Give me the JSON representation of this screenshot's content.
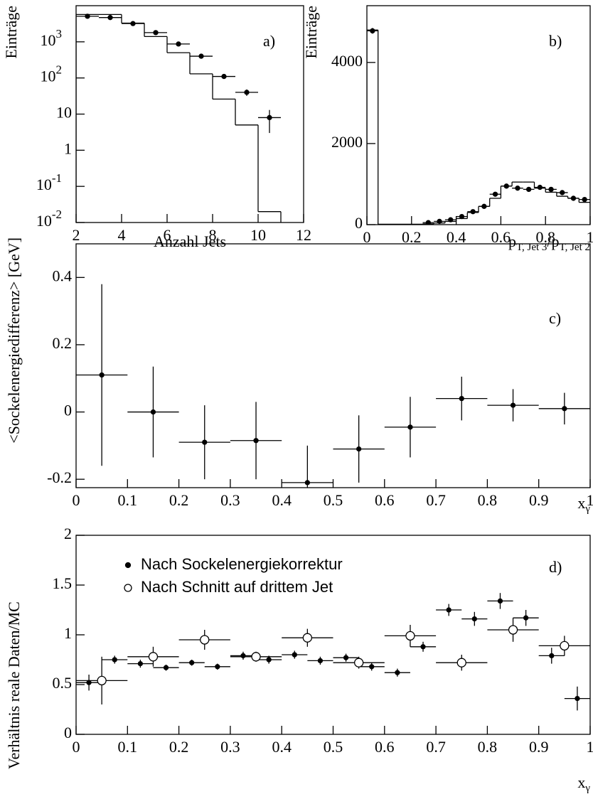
{
  "chart_data": [
    {
      "type": "histogram",
      "panel_label": "a)",
      "ylabel": "Einträge",
      "xlabel": [
        "Anzahl Jets"
      ],
      "log": true,
      "xlim": [
        2,
        12
      ],
      "ylim": [
        0.01,
        10000
      ],
      "xticks": [
        2,
        4,
        6,
        8,
        10,
        12
      ],
      "yticks": [
        {
          "value": 0.01,
          "label": "10",
          "sup": "-2"
        },
        {
          "value": 0.1,
          "label": "10",
          "sup": "-1"
        },
        1,
        10,
        {
          "value": 100,
          "label": "10",
          "sup": "2"
        },
        {
          "value": 1000,
          "label": "10",
          "sup": "3"
        }
      ],
      "bins": [
        2,
        3,
        4,
        5,
        6,
        7,
        8,
        9,
        10,
        11
      ],
      "mc": [
        5700,
        5700,
        3300,
        1400,
        500,
        130,
        26,
        5,
        0.02
      ],
      "series": [
        {
          "marker": "filled",
          "x": [
            2.5,
            3.5,
            4.5,
            5.5,
            6.5,
            7.5,
            8.5,
            9.5,
            10.5
          ],
          "values": [
            5100,
            4700,
            3200,
            1800,
            870,
            400,
            110,
            40,
            8
          ],
          "errors": [
            70,
            70,
            55,
            40,
            28,
            20,
            10,
            8,
            5
          ],
          "xerr": 0.5
        }
      ]
    },
    {
      "type": "histogram",
      "panel_label": "b)",
      "ylabel": "Einträge",
      "xlabel": [
        "p",
        "T, Jet 3",
        "/p",
        "T, Jet 2"
      ],
      "log": false,
      "xlim": [
        0,
        1
      ],
      "ylim": [
        0,
        5400
      ],
      "xticks": [
        0,
        0.2,
        0.4,
        0.6,
        0.8,
        1
      ],
      "yticks": [
        0,
        2000,
        4000
      ],
      "bins": [
        0,
        0.05,
        0.25,
        0.3,
        0.35,
        0.4,
        0.45,
        0.5,
        0.55,
        0.6,
        0.65,
        0.7,
        0.75,
        0.8,
        0.85,
        0.9,
        0.95,
        1
      ],
      "mc": [
        4800,
        10,
        20,
        40,
        80,
        150,
        300,
        450,
        650,
        950,
        1050,
        1050,
        900,
        800,
        700,
        650,
        550
      ],
      "series": [
        {
          "marker": "filled",
          "x": [
            0.025,
            0.275,
            0.325,
            0.375,
            0.425,
            0.475,
            0.525,
            0.575,
            0.625,
            0.675,
            0.725,
            0.775,
            0.825,
            0.875,
            0.925,
            0.975
          ],
          "values": [
            4780,
            50,
            80,
            120,
            200,
            320,
            450,
            750,
            950,
            900,
            870,
            920,
            870,
            790,
            650,
            620
          ],
          "errors": [
            70,
            8,
            10,
            12,
            15,
            20,
            22,
            28,
            32,
            30,
            30,
            31,
            30,
            28,
            26,
            25
          ],
          "xerr": 0.025
        }
      ]
    },
    {
      "type": "scatter",
      "panel_label": "c)",
      "ylabel": "<Sockelenergiedifferenz> [GeV]",
      "xlabel": [
        "x",
        "γ"
      ],
      "log": false,
      "xlim": [
        0,
        1
      ],
      "ylim": [
        -0.225,
        0.5
      ],
      "xticks": [
        0,
        0.1,
        0.2,
        0.3,
        0.4,
        0.5,
        0.6,
        0.7,
        0.8,
        0.9,
        1
      ],
      "yticks": [
        -0.2,
        0,
        0.2,
        0.4
      ],
      "series": [
        {
          "marker": "filled",
          "x": [
            0.05,
            0.15,
            0.25,
            0.35,
            0.45,
            0.55,
            0.65,
            0.75,
            0.85,
            0.95
          ],
          "values": [
            0.11,
            0,
            -0.09,
            -0.085,
            -0.21,
            -0.11,
            -0.045,
            0.04,
            0.02,
            0.01
          ],
          "errors": [
            0.27,
            0.135,
            0.11,
            0.115,
            0.11,
            0.1,
            0.09,
            0.065,
            0.048,
            0.047
          ],
          "xerr": 0.05
        }
      ]
    },
    {
      "type": "scatter",
      "panel_label": "d)",
      "ylabel": "Verhältnis reale Daten/MC",
      "xlabel": [
        "x",
        "γ"
      ],
      "log": false,
      "xlim": [
        0,
        1
      ],
      "ylim": [
        0,
        2
      ],
      "xticks": [
        0,
        0.1,
        0.2,
        0.3,
        0.4,
        0.5,
        0.6,
        0.7,
        0.8,
        0.9,
        1
      ],
      "yticks": [
        0,
        0.5,
        1,
        1.5,
        2
      ],
      "series": [
        {
          "name": "Nach Sockelenergiekorrektur",
          "marker": "filled",
          "x": [
            0.025,
            0.075,
            0.125,
            0.175,
            0.225,
            0.275,
            0.325,
            0.375,
            0.425,
            0.475,
            0.525,
            0.575,
            0.625,
            0.675,
            0.725,
            0.775,
            0.825,
            0.875,
            0.925,
            0.975
          ],
          "values": [
            0.52,
            0.75,
            0.71,
            0.67,
            0.72,
            0.68,
            0.79,
            0.75,
            0.8,
            0.74,
            0.77,
            0.68,
            0.62,
            0.88,
            1.25,
            1.16,
            1.34,
            1.17,
            0.79,
            0.36
          ],
          "errors": [
            0.08,
            0.04,
            0.04,
            0.03,
            0.03,
            0.03,
            0.04,
            0.04,
            0.04,
            0.04,
            0.04,
            0.04,
            0.04,
            0.05,
            0.06,
            0.07,
            0.08,
            0.08,
            0.08,
            0.12
          ],
          "xerr": 0.025
        },
        {
          "name": "Nach Schnitt auf drittem Jet",
          "marker": "open",
          "x": [
            0.05,
            0.15,
            0.25,
            0.35,
            0.45,
            0.55,
            0.65,
            0.75,
            0.85,
            0.95
          ],
          "values": [
            0.54,
            0.78,
            0.95,
            0.78,
            0.97,
            0.72,
            0.99,
            0.72,
            1.05,
            0.89
          ],
          "errors": [
            0.24,
            0.1,
            0.1,
            0.05,
            0.09,
            0.06,
            0.11,
            0.08,
            0.12,
            0.1
          ],
          "xerr": 0.05
        }
      ]
    }
  ]
}
